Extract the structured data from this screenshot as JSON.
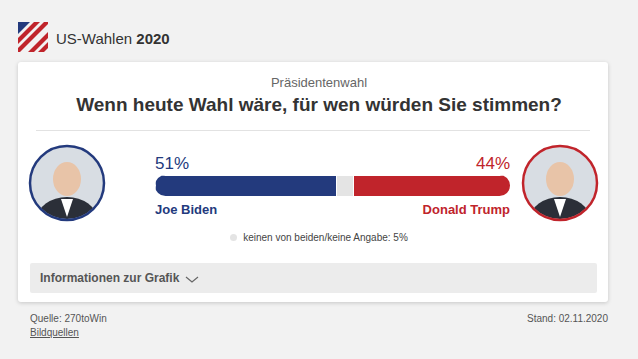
{
  "header": {
    "text": "US-Wahlen",
    "bold": "2020"
  },
  "chart_data": {
    "type": "bar",
    "subtitle": "Präsidentenwahl",
    "title": "Wenn heute Wahl wäre, für wen würden Sie stimmen?",
    "orientation": "horizontal",
    "stacked": true,
    "data_labels": true,
    "tick_labels": false,
    "categories": [
      null
    ],
    "xlim": [
      0,
      100
    ],
    "series": [
      {
        "name": "Joe Biden",
        "color": "#233a7d",
        "values": [
          51
        ],
        "value_labels": [
          "51%"
        ]
      },
      {
        "name": "keinen von beiden/keine Angabe: 5%",
        "color": "#e4e4e4",
        "values": [
          5
        ]
      },
      {
        "name": "Donald Trump",
        "color": "#c0242b",
        "values": [
          44
        ],
        "value_labels": [
          "44%"
        ]
      }
    ]
  },
  "details_toggle": "Informationen zur Grafik",
  "footer": {
    "source": "Quelle: 270toWin",
    "link": "Bildquellen",
    "date": "Stand: 02.11.2020"
  }
}
